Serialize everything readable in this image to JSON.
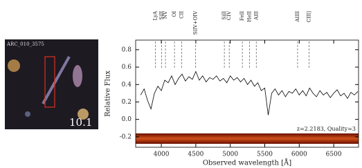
{
  "image_panel": {
    "id_label": "ARC_010_3575",
    "magnitude_label": "10.1"
  },
  "chart_data": {
    "type": "line",
    "y_label": "Relative Flux",
    "x_label": "Observed wavelength [Å]",
    "annotation": "z=2.2183, Quality=3",
    "xlim": [
      3628,
      6860
    ],
    "xticks": [
      4000,
      4500,
      5000,
      5500,
      6000,
      6500
    ],
    "ylim": [
      -0.32,
      0.91
    ],
    "yticks": [
      0.8,
      0.6,
      0.4,
      0.2,
      {
        "value": 0,
        "label": "0.0"
      },
      -0.2
    ],
    "lines": [
      {
        "label": "LyA",
        "x": 3913
      },
      {
        "label": "SiII",
        "x": 4005
      },
      {
        "label": "NV",
        "x": 4060
      },
      {
        "label": "OI",
        "x": 4191
      },
      {
        "label": "CII",
        "x": 4296
      },
      {
        "label": "SiIV+OIV",
        "x": 4497
      },
      {
        "label": "SiII",
        "x": 4914
      },
      {
        "label": "CIV",
        "x": 4985
      },
      {
        "label": "FeII",
        "x": 5175
      },
      {
        "label": "HeII",
        "x": 5278
      },
      {
        "label": "AlII",
        "x": 5377
      },
      {
        "label": "AlIII",
        "x": 5976
      },
      {
        "label": "CIII]",
        "x": 6144
      }
    ],
    "series": [
      {
        "color": "#000000",
        "x": [
          3700,
          3750,
          3800,
          3850,
          3900,
          3950,
          4000,
          4050,
          4100,
          4150,
          4200,
          4250,
          4300,
          4350,
          4400,
          4450,
          4500,
          4550,
          4600,
          4650,
          4700,
          4750,
          4800,
          4850,
          4900,
          4950,
          5000,
          5050,
          5100,
          5150,
          5200,
          5250,
          5300,
          5350,
          5400,
          5450,
          5500,
          5550,
          5600,
          5650,
          5700,
          5750,
          5800,
          5850,
          5900,
          5950,
          6000,
          6050,
          6100,
          6150,
          6200,
          6250,
          6300,
          6350,
          6400,
          6450,
          6500,
          6550,
          6600,
          6650,
          6700,
          6750,
          6800,
          6850
        ],
        "values": [
          0.28,
          0.35,
          0.22,
          0.12,
          0.3,
          0.38,
          0.33,
          0.45,
          0.42,
          0.5,
          0.4,
          0.47,
          0.52,
          0.44,
          0.49,
          0.46,
          0.55,
          0.45,
          0.5,
          0.43,
          0.48,
          0.46,
          0.5,
          0.44,
          0.47,
          0.42,
          0.5,
          0.45,
          0.48,
          0.43,
          0.47,
          0.4,
          0.45,
          0.38,
          0.42,
          0.33,
          0.36,
          0.05,
          0.3,
          0.35,
          0.28,
          0.33,
          0.26,
          0.32,
          0.3,
          0.35,
          0.28,
          0.33,
          0.27,
          0.36,
          0.3,
          0.26,
          0.33,
          0.28,
          0.31,
          0.25,
          0.3,
          0.34,
          0.27,
          0.3,
          0.24,
          0.31,
          0.28,
          0.32
        ]
      }
    ]
  }
}
